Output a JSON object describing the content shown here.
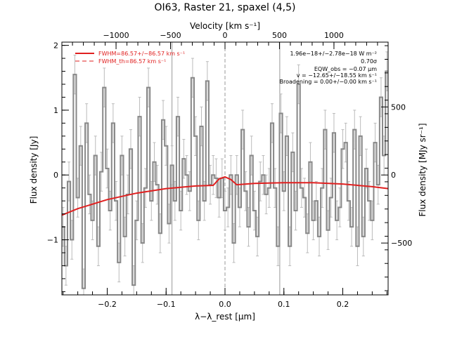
{
  "chart_data": {
    "type": "line",
    "title": "OI63, Raster 21, spaxel (4,5)",
    "xlabel": "λ−λ_rest [μm]",
    "ylabel": "Flux density [Jy]",
    "top_xlabel": "Velocity [km s⁻¹]",
    "right_ylabel": "Flux density [MJy sr⁻¹]",
    "xlim": [
      -0.277,
      0.277
    ],
    "ylim": [
      -1.85,
      2.05
    ],
    "x_ticks": [
      -0.2,
      -0.1,
      0.0,
      0.1,
      0.2
    ],
    "x_tick_labels": [
      "−0.2",
      "−0.1",
      "0.0",
      "0.1",
      "0.2"
    ],
    "y_ticks": [
      -1,
      0,
      1,
      2
    ],
    "y_tick_labels": [
      "−1",
      "0",
      "1",
      "2"
    ],
    "top_ticks": [
      -1000,
      -500,
      0,
      500,
      1000
    ],
    "top_tick_labels": [
      "−1000",
      "−500",
      "0",
      "500",
      "1000"
    ],
    "right_ticks": [
      -500,
      0,
      500
    ],
    "right_tick_labels": [
      "−500",
      "0",
      "500"
    ],
    "vertical_lines": [
      -0.09,
      0.0,
      0.093
    ],
    "legend": [
      {
        "label": "FWHM=86.57+/−86.57 km s⁻¹",
        "style": "solid",
        "color": "#e02020"
      },
      {
        "label": "FWHM_th=86.57 km s⁻¹",
        "style": "dashed",
        "color": "#e02020"
      }
    ],
    "annotations": [
      "1.96e−18+/−2.78e−18 W m⁻²",
      "0.70σ",
      "EQW_obs = −0.07 μm",
      "v = −12.65+/−18.55 km s⁻¹",
      "Broadening = 0.00+/−0.00 km s⁻¹"
    ],
    "series": [
      {
        "name": "spectrum",
        "color": "#888888",
        "style": "step",
        "x": [
          -0.275,
          -0.27,
          -0.265,
          -0.26,
          -0.255,
          -0.25,
          -0.245,
          -0.24,
          -0.235,
          -0.23,
          -0.225,
          -0.22,
          -0.215,
          -0.21,
          -0.205,
          -0.2,
          -0.195,
          -0.19,
          -0.185,
          -0.18,
          -0.175,
          -0.17,
          -0.165,
          -0.16,
          -0.155,
          -0.15,
          -0.145,
          -0.14,
          -0.135,
          -0.13,
          -0.125,
          -0.12,
          -0.115,
          -0.11,
          -0.105,
          -0.1,
          -0.095,
          -0.09,
          -0.085,
          -0.08,
          -0.075,
          -0.07,
          -0.065,
          -0.06,
          -0.055,
          -0.05,
          -0.045,
          -0.04,
          -0.035,
          -0.03,
          -0.025,
          -0.02,
          -0.015,
          -0.01,
          -0.005,
          0.0,
          0.005,
          0.01,
          0.015,
          0.02,
          0.025,
          0.03,
          0.035,
          0.04,
          0.045,
          0.05,
          0.055,
          0.06,
          0.065,
          0.07,
          0.075,
          0.08,
          0.085,
          0.09,
          0.095,
          0.1,
          0.105,
          0.11,
          0.115,
          0.12,
          0.125,
          0.13,
          0.135,
          0.14,
          0.145,
          0.15,
          0.155,
          0.16,
          0.165,
          0.17,
          0.175,
          0.18,
          0.185,
          0.19,
          0.195,
          0.2,
          0.205,
          0.21,
          0.215,
          0.22,
          0.225,
          0.23,
          0.235,
          0.24,
          0.245,
          0.25,
          0.255,
          0.26,
          0.265,
          0.27,
          0.275
        ],
        "y": [
          -0.8,
          -1.4,
          -0.1,
          -1.0,
          1.55,
          -0.35,
          0.45,
          -1.75,
          0.8,
          -0.3,
          -0.7,
          0.3,
          -1.1,
          0.05,
          1.35,
          0.1,
          -0.55,
          0.8,
          -0.4,
          -1.35,
          0.3,
          -0.95,
          -0.3,
          0.4,
          -1.7,
          -0.7,
          0.9,
          -1.05,
          -0.2,
          1.35,
          -0.4,
          0.2,
          -0.15,
          -0.9,
          0.85,
          0.45,
          -0.75,
          0.15,
          -0.4,
          0.9,
          -0.55,
          0.25,
          0.0,
          -0.25,
          1.5,
          0.6,
          -0.7,
          0.75,
          -0.4,
          1.45,
          -0.15,
          0.0,
          -0.05,
          -0.35,
          -0.05,
          -0.55,
          -0.5,
          0.0,
          -1.05,
          0.0,
          -0.5,
          0.7,
          -0.25,
          -0.8,
          0.3,
          -0.55,
          -0.95,
          -0.1,
          0.0,
          -0.3,
          -0.2,
          0.8,
          -0.2,
          -1.1,
          0.95,
          -0.25,
          0.6,
          -1.1,
          0.35,
          -0.55,
          1.4,
          -0.2,
          -0.35,
          -0.9,
          0.2,
          -0.7,
          -0.4,
          -0.95,
          -0.2,
          0.7,
          -0.85,
          -0.35,
          0.65,
          -0.7,
          -0.5,
          0.4,
          0.5,
          -0.4,
          -0.8,
          0.7,
          -1.1,
          0.6,
          -0.95,
          0.1,
          -0.4,
          -0.7,
          0.5,
          -0.15,
          1.2,
          0.3,
          1.6
        ],
        "yerr": 0.3
      },
      {
        "name": "fit",
        "color": "#e02020",
        "style": "line",
        "x": [
          -0.277,
          -0.25,
          -0.2,
          -0.15,
          -0.1,
          -0.05,
          -0.02,
          -0.01,
          0.0,
          0.01,
          0.02,
          0.05,
          0.1,
          0.15,
          0.2,
          0.25,
          0.277
        ],
        "y": [
          -0.62,
          -0.52,
          -0.38,
          -0.28,
          -0.21,
          -0.17,
          -0.16,
          -0.06,
          -0.03,
          -0.07,
          -0.15,
          -0.13,
          -0.12,
          -0.12,
          -0.14,
          -0.18,
          -0.21
        ]
      }
    ]
  }
}
